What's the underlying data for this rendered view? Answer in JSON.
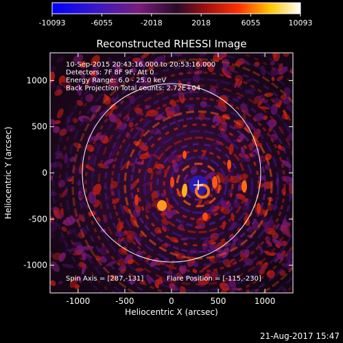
{
  "chart_data": {
    "type": "heatmap",
    "title": "Reconstructed RHESSI Image",
    "xlabel": "Heliocentric X (arcsec)",
    "ylabel": "Heliocentric Y (arcsec)",
    "xlim": [
      -1300,
      1300
    ],
    "ylim": [
      -1300,
      1300
    ],
    "xticks": [
      -1000,
      -500,
      0,
      500,
      1000
    ],
    "yticks": [
      -1000,
      -500,
      0,
      500,
      1000
    ],
    "colorbar": {
      "min": -10093,
      "max": 10093,
      "tick_values": [
        -10093,
        -6055,
        -2018,
        2018,
        6055,
        10093
      ],
      "tick_labels": [
        "-10093",
        "-6055",
        "-2018",
        "2018",
        "6055",
        "10093"
      ]
    },
    "solar_limb_radius": 955,
    "annotations": [
      "10-Sep-2015 20:43:16.000 to 20:53:16.000",
      "Detectors: 7F 8F 9F, Att 0",
      "Energy Range: 6.0 - 25.0 keV",
      "Back Projection      Total counts: 2.72E+04"
    ],
    "spin_axis_label": "Spin Axis = [287,-131]",
    "flare_position_label": "Flare Position = [-115,-230]",
    "spin_axis": [
      287,
      -131
    ],
    "timestamp": "21-Aug-2017 15:47"
  },
  "colors": {
    "background": "#000000",
    "foreground": "#ffffff",
    "colormap": [
      "#0000ff",
      "#3b18c8",
      "#7a1c7a",
      "#2a0a2a",
      "#a01010",
      "#ff3000",
      "#ffc800",
      "#ffffff"
    ]
  }
}
